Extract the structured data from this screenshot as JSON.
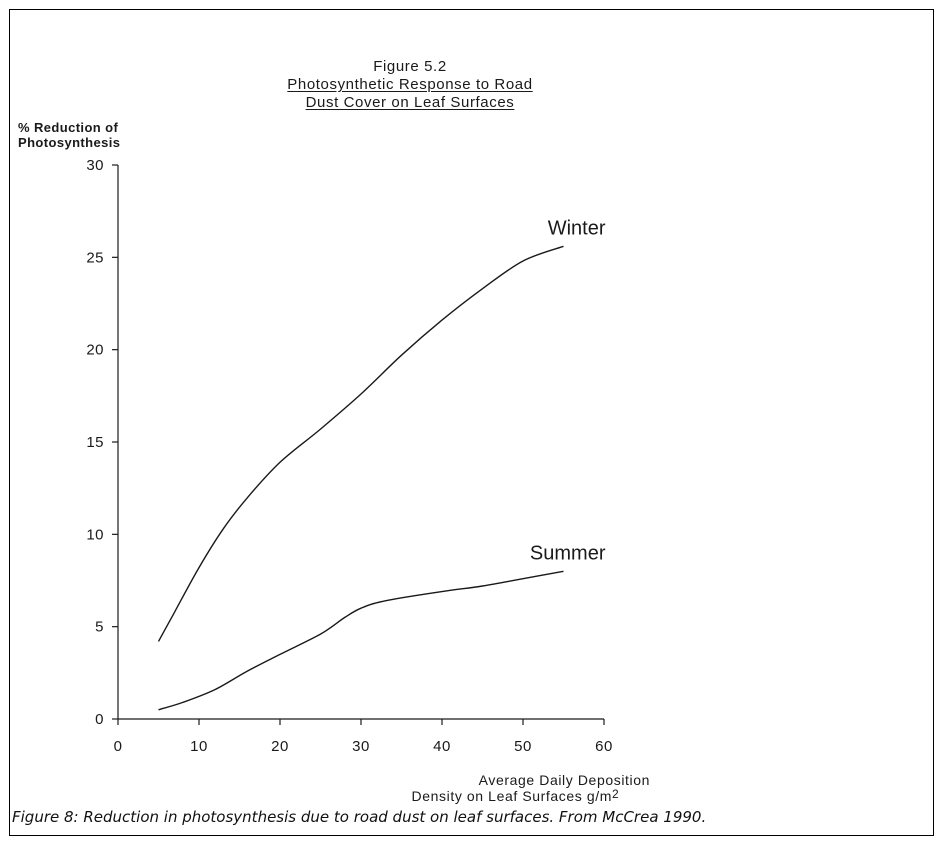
{
  "chart_data": {
    "type": "line",
    "title_lines": [
      "Figure 5.2",
      "Photosynthetic Response to Road",
      "Dust Cover on Leaf Surfaces"
    ],
    "ylabel_lines": [
      "% Reduction of",
      "Photosynthesis"
    ],
    "xlabel_lines": [
      "Average Daily Deposition",
      "Density on Leaf Surfaces g/m"
    ],
    "xlabel_superscript": "2",
    "xlim": [
      0,
      60
    ],
    "ylim": [
      0,
      30
    ],
    "xticks": [
      0,
      10,
      20,
      30,
      40,
      50,
      60
    ],
    "yticks": [
      0,
      5,
      10,
      15,
      20,
      25,
      30
    ],
    "grid": false,
    "series": [
      {
        "name": "Winter",
        "x": [
          5,
          7,
          10,
          13,
          16,
          20,
          25,
          30,
          35,
          40,
          45,
          50,
          55
        ],
        "y": [
          4.2,
          5.8,
          8.2,
          10.3,
          12.0,
          13.9,
          15.7,
          17.6,
          19.7,
          21.6,
          23.3,
          24.8,
          25.6
        ]
      },
      {
        "name": "Summer",
        "x": [
          5,
          8,
          12,
          16,
          20,
          25,
          28,
          30,
          33,
          40,
          45,
          50,
          55
        ],
        "y": [
          0.5,
          0.9,
          1.6,
          2.6,
          3.5,
          4.6,
          5.5,
          6.0,
          6.4,
          6.9,
          7.2,
          7.6,
          8.0
        ]
      }
    ]
  },
  "caption": "Figure 8: Reduction in photosynthesis due to road dust on leaf surfaces. From McCrea 1990."
}
